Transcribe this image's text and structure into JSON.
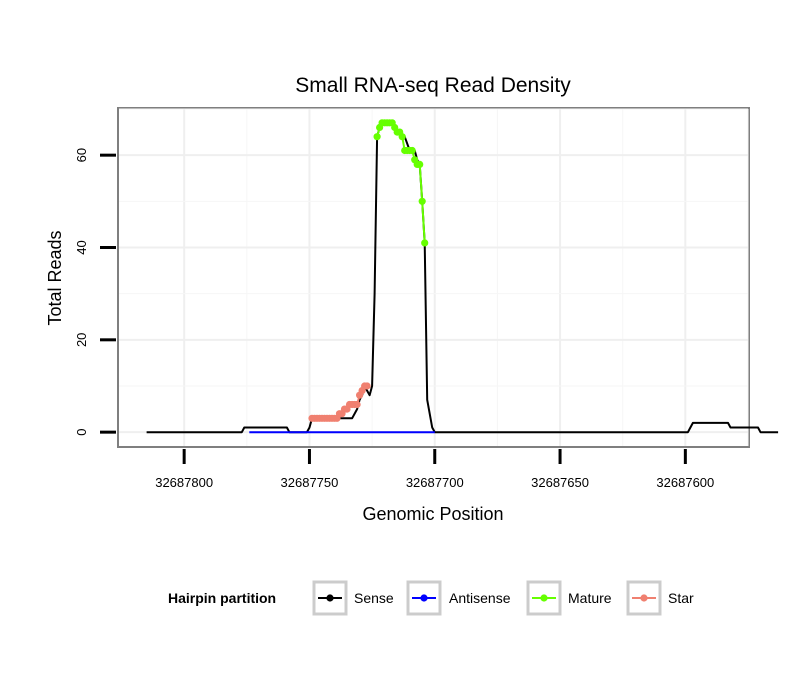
{
  "chart_data": {
    "type": "line",
    "title": "Small RNA-seq Read Density",
    "xlabel": "Genomic Position",
    "ylabel": "Total Reads",
    "x_reversed": true,
    "xlim": [
      32687826,
      32687575
    ],
    "ylim": [
      -3,
      70
    ],
    "x_ticks": [
      32687800,
      32687750,
      32687700,
      32687650,
      32687600
    ],
    "x_tick_labels": [
      "32687800",
      "32687750",
      "32687700",
      "32687650",
      "32687600"
    ],
    "y_ticks": [
      0,
      20,
      40,
      60
    ],
    "y_tick_labels": [
      "0",
      "20",
      "40",
      "60"
    ],
    "grid": true,
    "legend": {
      "title": "Hairpin partition",
      "position": "bottom",
      "entries": [
        {
          "label": "Sense",
          "color": "#000000"
        },
        {
          "label": "Antisense",
          "color": "#0000ff"
        },
        {
          "label": "Mature",
          "color": "#66ff00"
        },
        {
          "label": "Star",
          "color": "#f08070"
        }
      ]
    },
    "series": [
      {
        "name": "Sense",
        "color": "#000000",
        "x": [
          32687815,
          32687777,
          32687776,
          32687759,
          32687758,
          32687751,
          32687750,
          32687749,
          32687733,
          32687731,
          32687730,
          32687729,
          32687728,
          32687727,
          32687726,
          32687725,
          32687724,
          32687723,
          32687722,
          32687721,
          32687720,
          32687719,
          32687718,
          32687717,
          32687716,
          32687714,
          32687712,
          32687710,
          32687708,
          32687707,
          32687706,
          32687705,
          32687704,
          32687703,
          32687701,
          32687700,
          32687599,
          32687598,
          32687597,
          32687590,
          32687583,
          32687582,
          32687577,
          32687571,
          32687570,
          32687563
        ],
        "y": [
          0,
          0,
          1,
          1,
          0,
          0,
          1,
          3,
          3,
          5,
          7,
          8,
          10,
          9,
          8,
          10,
          30,
          64,
          66,
          67,
          67,
          67,
          67,
          67,
          66,
          65,
          64,
          61,
          61,
          59,
          58,
          50,
          41,
          7,
          1,
          0,
          0,
          1,
          2,
          2,
          2,
          1,
          1,
          1,
          0,
          0
        ]
      },
      {
        "name": "Antisense",
        "color": "#0000ff",
        "x": [
          32687774,
          32687700
        ],
        "y": [
          0,
          0
        ]
      },
      {
        "name": "Mature",
        "color": "#66ff00",
        "x": [
          32687723,
          32687722,
          32687721,
          32687720,
          32687719,
          32687718,
          32687717,
          32687716,
          32687715,
          32687714,
          32687713,
          32687712,
          32687711,
          32687710,
          32687709,
          32687708,
          32687707,
          32687706,
          32687705,
          32687704
        ],
        "y": [
          64,
          66,
          67,
          67,
          67,
          67,
          67,
          66,
          65,
          65,
          64,
          61,
          61,
          61,
          61,
          59,
          58,
          58,
          50,
          41
        ]
      },
      {
        "name": "Star",
        "color": "#f08070",
        "x": [
          32687749,
          32687748,
          32687747,
          32687746,
          32687745,
          32687744,
          32687743,
          32687742,
          32687741,
          32687740,
          32687739,
          32687738,
          32687737,
          32687736,
          32687735,
          32687734,
          32687733,
          32687732,
          32687731,
          32687730,
          32687729,
          32687728,
          32687727
        ],
        "y": [
          3,
          3,
          3,
          3,
          3,
          3,
          3,
          3,
          3,
          3,
          3,
          4,
          4,
          5,
          5,
          6,
          6,
          6,
          6,
          8,
          9,
          10,
          10
        ]
      }
    ]
  }
}
